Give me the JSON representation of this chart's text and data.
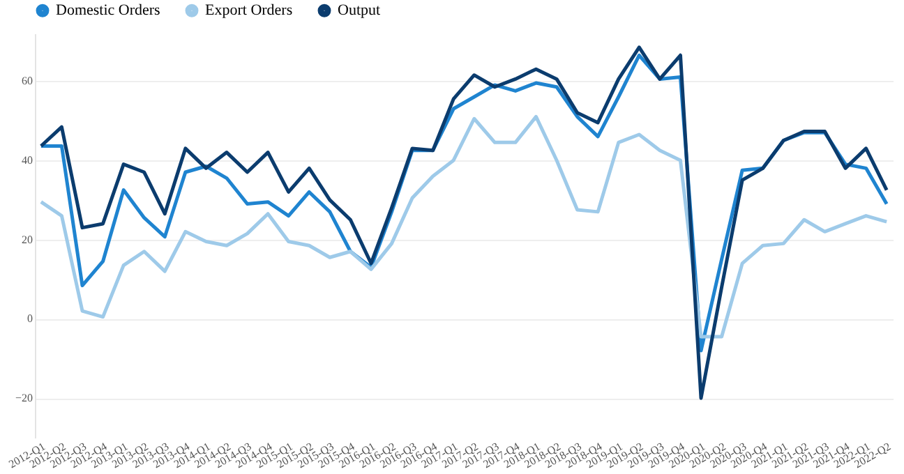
{
  "chart_data": {
    "type": "line",
    "categories": [
      "2012-Q1",
      "2012-Q2",
      "2012-Q3",
      "2012-Q4",
      "2013-Q1",
      "2013-Q2",
      "2013-Q3",
      "2013-Q4",
      "2014-Q1",
      "2014-Q2",
      "2014-Q3",
      "2014-Q4",
      "2015-Q1",
      "2015-Q2",
      "2015-Q3",
      "2015-Q4",
      "2016-Q1",
      "2016-Q2",
      "2016-Q3",
      "2016-Q4",
      "2017-Q1",
      "2017-Q2",
      "2017-Q3",
      "2017-Q4",
      "2018-Q1",
      "2018-Q2",
      "2018-Q3",
      "2018-Q4",
      "2019-Q1",
      "2019-Q2",
      "2019-Q3",
      "2019-Q4",
      "2020-Q1",
      "2020-Q2",
      "2020-Q3",
      "2020-Q4",
      "2021-Q1",
      "2021-Q2",
      "2021-Q3",
      "2021-Q4",
      "2022-Q1",
      "2022-Q2"
    ],
    "series": [
      {
        "name": "Domestic Orders",
        "color": "#1f84d0",
        "values": [
          43.6,
          43.6,
          8.4,
          14.5,
          32.5,
          25.5,
          20.7,
          37,
          38.5,
          35.5,
          29,
          29.5,
          26,
          32,
          27,
          17,
          13,
          27,
          42.5,
          42.5,
          53,
          56,
          59,
          57.5,
          59.5,
          58.5,
          51,
          46,
          56,
          66.5,
          60.5,
          61,
          -8,
          15,
          37.5,
          38,
          45,
          47,
          47,
          39,
          38,
          29
        ]
      },
      {
        "name": "Export Orders",
        "color": "#9ecae9",
        "values": [
          29.5,
          26,
          2,
          0.5,
          13.5,
          17,
          12,
          22,
          19.5,
          18.5,
          21.5,
          26.5,
          19.5,
          18.5,
          15.5,
          17,
          12.5,
          19,
          30.5,
          36,
          40,
          50.5,
          44.5,
          44.5,
          51,
          40,
          27.5,
          27,
          44.5,
          46.5,
          42.5,
          40,
          -4.5,
          -4.5,
          14,
          18.5,
          19,
          25,
          22,
          24,
          26,
          24.5
        ]
      },
      {
        "name": "Output",
        "color": "#0b3c6e",
        "values": [
          43.6,
          48.4,
          23,
          24,
          39,
          37,
          26.5,
          43,
          38,
          42,
          37,
          42,
          32,
          38,
          30,
          25,
          14,
          28,
          43,
          42.5,
          55.5,
          61.5,
          58.5,
          60.5,
          63,
          60.5,
          52,
          49.5,
          60.5,
          68.5,
          60.5,
          66.5,
          -20,
          8,
          35,
          38,
          45,
          47.3,
          47.3,
          38,
          43,
          32.5
        ]
      }
    ],
    "ylim": [
      -30,
      72
    ],
    "yticks": [
      -20,
      0,
      20,
      40,
      60
    ],
    "grid": "y",
    "legend": "top left",
    "marker": "none",
    "line_style": "solid"
  }
}
